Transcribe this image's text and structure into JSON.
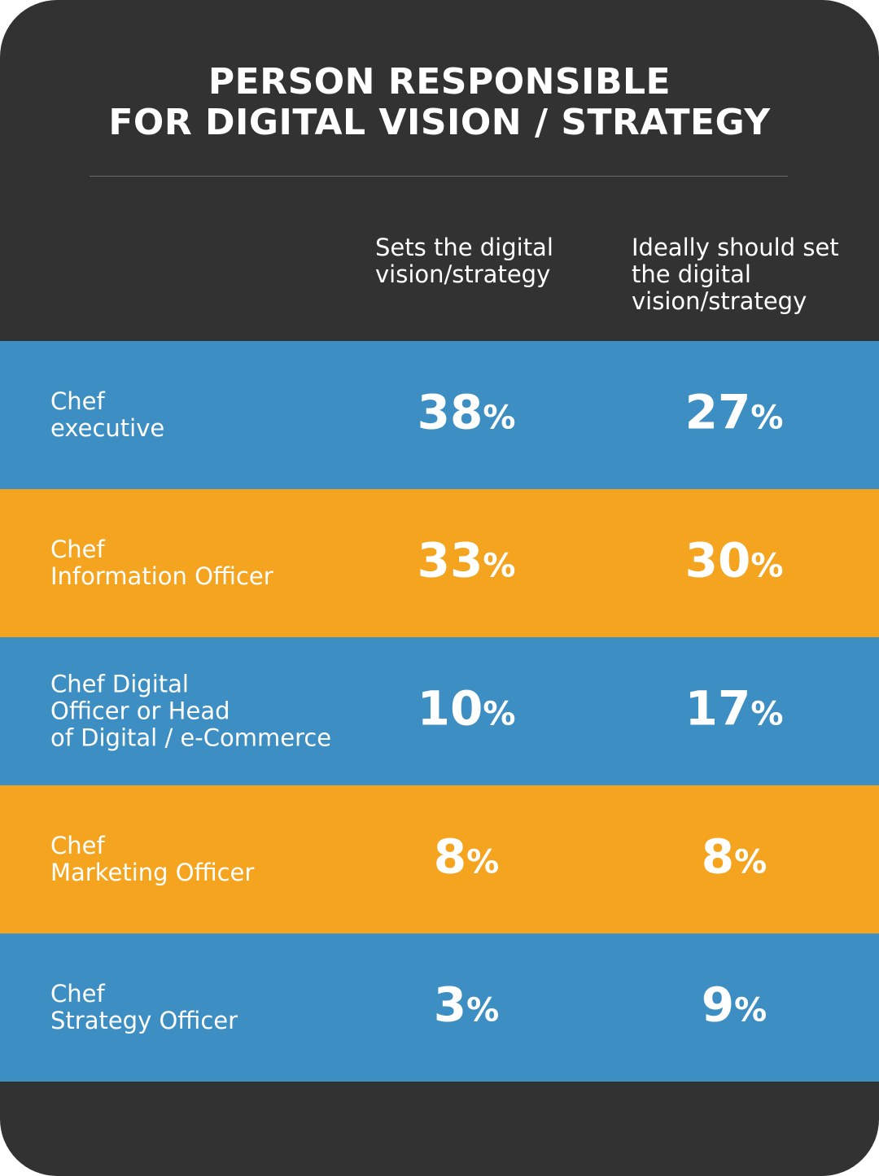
{
  "colors": {
    "background": "#323232",
    "blue": "#3d8fc3",
    "orange": "#f5a41f",
    "text": "#ffffff"
  },
  "title_line1": "PERSON RESPONSIBLE",
  "title_line2": "FOR DIGITAL VISION / STRATEGY",
  "chart_data": {
    "type": "table",
    "title": "PERSON RESPONSIBLE FOR DIGITAL VISION / STRATEGY",
    "columns": [
      "Sets the digital\nvision/strategy",
      "Ideally should set\nthe digital\nvision/strategy"
    ],
    "unit": "%",
    "rows": [
      {
        "label": "Chef\nexecutive",
        "values": [
          38,
          27
        ],
        "color": "#3d8fc3"
      },
      {
        "label": "Chef\nInformation Officer",
        "values": [
          33,
          30
        ],
        "color": "#f5a41f"
      },
      {
        "label": "Chef Digital\nOfficer or Head\nof Digital / e-Commerce",
        "values": [
          10,
          17
        ],
        "color": "#3d8fc3"
      },
      {
        "label": "Chef\nMarketing Officer",
        "values": [
          8,
          8
        ],
        "color": "#f5a41f"
      },
      {
        "label": "Chef\nStrategy Officer",
        "values": [
          3,
          9
        ],
        "color": "#3d8fc3"
      }
    ]
  }
}
